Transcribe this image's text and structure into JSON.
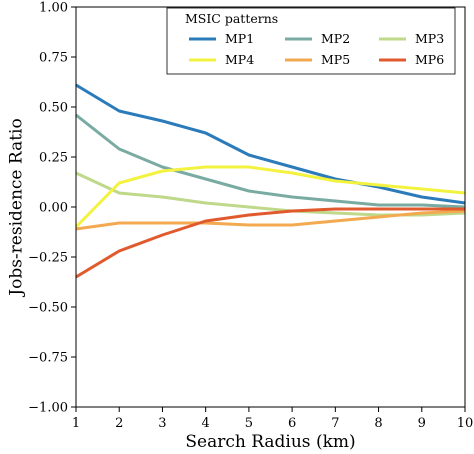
{
  "chart_data": {
    "type": "line",
    "xlabel": "Search Radius (km)",
    "ylabel": "Jobs-residence Ratio",
    "xlim": [
      1,
      10
    ],
    "ylim": [
      -1.0,
      1.0
    ],
    "x_ticks": [
      "1",
      "2",
      "3",
      "4",
      "5",
      "6",
      "7",
      "8",
      "9",
      "10"
    ],
    "y_ticks": [
      "1.00",
      "0.75",
      "0.50",
      "0.25",
      "0.00",
      "−0.25",
      "−0.50",
      "−0.75",
      "−1.00"
    ],
    "grid": false,
    "legend": {
      "title": "MSIC patterns",
      "placement": "top-right",
      "columns": 3
    },
    "x": [
      1,
      2,
      3,
      4,
      5,
      6,
      7,
      8,
      9,
      10
    ],
    "series": [
      {
        "name": "MP1",
        "color": "#2b7bba",
        "values": [
          0.61,
          0.48,
          0.43,
          0.37,
          0.26,
          0.2,
          0.14,
          0.1,
          0.05,
          0.02
        ]
      },
      {
        "name": "MP2",
        "color": "#7aaba3",
        "values": [
          0.46,
          0.29,
          0.2,
          0.14,
          0.08,
          0.05,
          0.03,
          0.01,
          0.01,
          0.0
        ]
      },
      {
        "name": "MP3",
        "color": "#bfd88a",
        "values": [
          0.17,
          0.07,
          0.05,
          0.02,
          0.0,
          -0.02,
          -0.03,
          -0.04,
          -0.04,
          -0.03
        ]
      },
      {
        "name": "MP4",
        "color": "#f2f23f",
        "values": [
          -0.1,
          0.12,
          0.18,
          0.2,
          0.2,
          0.17,
          0.13,
          0.11,
          0.09,
          0.07
        ]
      },
      {
        "name": "MP5",
        "color": "#f2a950",
        "values": [
          -0.11,
          -0.08,
          -0.08,
          -0.08,
          -0.09,
          -0.09,
          -0.07,
          -0.05,
          -0.03,
          -0.02
        ]
      },
      {
        "name": "MP6",
        "color": "#e05a2e",
        "values": [
          -0.35,
          -0.22,
          -0.14,
          -0.07,
          -0.04,
          -0.02,
          -0.01,
          -0.01,
          -0.01,
          -0.01
        ]
      }
    ]
  }
}
